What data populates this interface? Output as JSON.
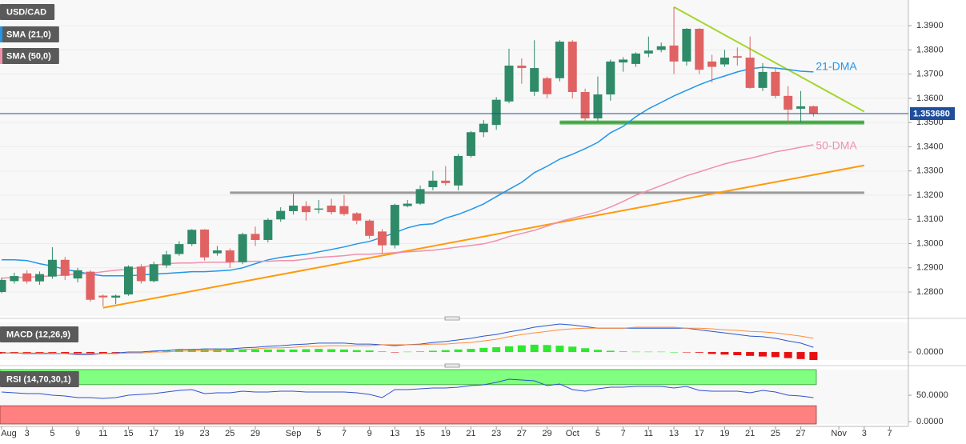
{
  "chart_data": [
    {
      "type": "candlestick",
      "title": "USD/CAD",
      "categories": [
        "Aug",
        null,
        "3",
        null,
        "5",
        null,
        "9",
        null,
        "11",
        null,
        "15",
        null,
        "17",
        null,
        "19",
        null,
        "23",
        null,
        "25",
        null,
        "29",
        null,
        null,
        "Sep",
        null,
        "5",
        null,
        "7",
        null,
        "9",
        null,
        "13",
        null,
        "15",
        null,
        "19",
        null,
        "21",
        null,
        "23",
        null,
        "27",
        null,
        "29",
        null,
        "Oct",
        null,
        "5",
        null,
        "7",
        null,
        "11",
        null,
        "13",
        null,
        "17",
        null,
        "19",
        null,
        "21",
        null,
        "25",
        null,
        "27",
        null,
        null,
        "Nov",
        null,
        "3",
        null,
        "7"
      ],
      "open": [
        1.28,
        1.2845,
        1.2877,
        1.2844,
        1.2864,
        1.2933,
        1.2856,
        1.2884,
        1.2785,
        1.2777,
        1.279,
        1.2905,
        1.2845,
        1.291,
        1.2957,
        1.2998,
        1.3058,
        1.296,
        1.2972,
        1.2923,
        1.304,
        1.3015,
        1.31,
        1.3134,
        1.3155,
        1.314,
        1.3157,
        1.3155,
        1.3125,
        1.3095,
        1.305,
        1.2993,
        1.3155,
        1.3165,
        1.3233,
        1.326,
        1.324,
        1.3362,
        1.346,
        1.349,
        1.3587,
        1.3735,
        1.3627,
        1.3683,
        1.3683,
        1.3834,
        1.3626,
        1.3517,
        1.3616,
        1.3748,
        1.3742,
        1.3785,
        1.38,
        1.3818,
        1.3752,
        1.3887,
        1.3752,
        1.374,
        1.3774,
        1.3768,
        1.3643,
        1.3709,
        1.361,
        1.3557,
        1.3567,
        null,
        null,
        null,
        null,
        null,
        null
      ],
      "high": [
        1.286,
        1.288,
        1.289,
        1.2885,
        1.2985,
        1.2945,
        1.29,
        1.289,
        1.279,
        1.279,
        1.291,
        1.2915,
        1.2925,
        1.297,
        1.301,
        1.306,
        1.306,
        1.299,
        1.298,
        1.3045,
        1.307,
        1.3105,
        1.315,
        1.3205,
        1.3175,
        1.318,
        1.3185,
        1.32,
        1.313,
        1.31,
        1.306,
        1.3165,
        1.318,
        1.324,
        1.33,
        1.332,
        1.337,
        1.3465,
        1.351,
        1.3605,
        1.3805,
        1.3765,
        1.384,
        1.369,
        1.384,
        1.384,
        1.364,
        1.369,
        1.376,
        1.377,
        1.379,
        1.3855,
        1.383,
        1.3977,
        1.389,
        1.389,
        1.378,
        1.38,
        1.381,
        1.3855,
        1.3745,
        1.3725,
        1.365,
        1.363,
        1.357,
        null,
        null,
        null,
        null,
        null,
        null
      ],
      "low": [
        1.2795,
        1.2835,
        1.2835,
        1.283,
        1.2855,
        1.285,
        1.284,
        1.276,
        1.274,
        1.275,
        1.2785,
        1.2835,
        1.284,
        1.29,
        1.295,
        1.299,
        1.293,
        1.295,
        1.29,
        1.2915,
        1.299,
        1.3005,
        1.309,
        1.312,
        1.3095,
        1.3125,
        1.312,
        1.3115,
        1.308,
        1.302,
        1.296,
        1.298,
        1.315,
        1.316,
        1.322,
        1.324,
        1.322,
        1.3355,
        1.344,
        1.347,
        1.358,
        1.366,
        1.361,
        1.36,
        1.367,
        1.36,
        1.3505,
        1.3505,
        1.359,
        1.371,
        1.373,
        1.377,
        1.379,
        1.37,
        1.3735,
        1.37,
        1.3665,
        1.373,
        1.3735,
        1.364,
        1.363,
        1.36,
        1.35,
        1.35,
        1.3525,
        null,
        null,
        null,
        null,
        null,
        null
      ],
      "close": [
        1.285,
        1.2866,
        1.2844,
        1.2874,
        1.2933,
        1.2867,
        1.289,
        1.2768,
        1.2778,
        1.2785,
        1.2905,
        1.2845,
        1.2915,
        1.2955,
        1.2998,
        1.3057,
        1.2943,
        1.2972,
        1.2923,
        1.3039,
        1.3015,
        1.3098,
        1.3135,
        1.3157,
        1.313,
        1.3145,
        1.313,
        1.3122,
        1.3095,
        1.3032,
        1.2993,
        1.316,
        1.3165,
        1.3225,
        1.326,
        1.325,
        1.3362,
        1.346,
        1.3495,
        1.3594,
        1.3735,
        1.3725,
        1.3725,
        1.3617,
        1.3834,
        1.3626,
        1.3517,
        1.3616,
        1.3752,
        1.376,
        1.3785,
        1.3797,
        1.3815,
        1.3752,
        1.3887,
        1.3718,
        1.373,
        1.3768,
        1.3768,
        1.3643,
        1.3709,
        1.361,
        1.3553,
        1.3567,
        1.3537,
        null,
        null,
        null,
        null,
        null,
        null
      ],
      "color_up": "#2f8a68",
      "color_down": "#e06262",
      "ylim": [
        1.2701,
        1.4006
      ],
      "yticks": [
        {
          "value": 1.28,
          "label": "1.2800"
        },
        {
          "value": 1.29,
          "label": "1.2900"
        },
        {
          "value": 1.3,
          "label": "1.3000"
        },
        {
          "value": 1.31,
          "label": "1.3100"
        },
        {
          "value": 1.32,
          "label": "1.3200"
        },
        {
          "value": 1.33,
          "label": "1.3300"
        },
        {
          "value": 1.34,
          "label": "1.3400"
        },
        {
          "value": 1.35,
          "label": "1.3500"
        },
        {
          "value": 1.36,
          "label": "1.3600"
        },
        {
          "value": 1.37,
          "label": "1.3700"
        },
        {
          "value": 1.38,
          "label": "1.3800"
        },
        {
          "value": 1.39,
          "label": "1.3900"
        }
      ],
      "grid": true,
      "last_price": {
        "value": 1.35368,
        "label": "1.353680",
        "color": "#1f4e9c"
      },
      "series": [
        {
          "name": "SMA (21,0)",
          "label": "21-DMA",
          "color": "#2196e8",
          "values": [
            1.2933,
            1.2933,
            1.293,
            1.2917,
            1.2907,
            1.2894,
            1.2884,
            1.2874,
            1.2867,
            1.2867,
            1.2867,
            1.287,
            1.2874,
            1.2877,
            1.288,
            1.2884,
            1.2884,
            1.2887,
            1.289,
            1.29,
            1.2917,
            1.2933,
            1.2943,
            1.295,
            1.2956,
            1.2966,
            1.2976,
            1.2986,
            1.2999,
            1.3009,
            1.3026,
            1.3045,
            1.3065,
            1.3078,
            1.3082,
            1.3105,
            1.3121,
            1.3141,
            1.3164,
            1.3194,
            1.3224,
            1.3253,
            1.3293,
            1.3319,
            1.3349,
            1.3369,
            1.3392,
            1.3418,
            1.3458,
            1.3484,
            1.3524,
            1.3557,
            1.3583,
            1.361,
            1.3633,
            1.3656,
            1.3676,
            1.3692,
            1.3709,
            1.3722,
            1.3728,
            1.3725,
            1.3719,
            1.3712,
            1.3709,
            null,
            null,
            null,
            null,
            null,
            null
          ]
        },
        {
          "name": "SMA (50,0)",
          "label": "50-DMA",
          "color": "#f090ac",
          "values": [
            1.2857,
            1.2861,
            1.2861,
            1.2864,
            1.2867,
            1.287,
            1.2874,
            1.2877,
            1.2884,
            1.289,
            1.2894,
            1.2903,
            1.291,
            1.2917,
            1.292,
            1.292,
            1.2923,
            1.2923,
            1.2923,
            1.2927,
            1.2927,
            1.2927,
            1.293,
            1.293,
            1.2936,
            1.2943,
            1.2946,
            1.295,
            1.2956,
            1.2956,
            1.2959,
            1.2963,
            1.2966,
            1.2969,
            1.2973,
            1.2979,
            1.2986,
            1.2992,
            1.2999,
            1.3012,
            1.3029,
            1.3042,
            1.3055,
            1.3072,
            1.3091,
            1.3105,
            1.3118,
            1.3131,
            1.3151,
            1.3174,
            1.32,
            1.322,
            1.324,
            1.326,
            1.328,
            1.3296,
            1.3313,
            1.3329,
            1.3342,
            1.3352,
            1.3365,
            1.3379,
            1.3388,
            1.3398,
            1.3408,
            null,
            null,
            null,
            null,
            null,
            null
          ]
        }
      ],
      "lines": [
        {
          "color": "#a4d62a",
          "x": [
            53,
            68
          ],
          "y": [
            1.3977,
            1.3545
          ]
        },
        {
          "color": "#5cb85c",
          "x": [
            44,
            68
          ],
          "y": [
            1.35,
            1.35
          ]
        },
        {
          "color": "#9a9a9a",
          "x": [
            18,
            68
          ],
          "y": [
            1.321,
            1.321
          ]
        },
        {
          "color": "#ff9a0a",
          "x": [
            8,
            68
          ],
          "y": [
            1.2735,
            1.3323
          ]
        }
      ]
    },
    {
      "type": "macd",
      "title": "MACD (12,26,9)",
      "ylim": [
        -0.0025,
        0.0093
      ],
      "yticks": [
        {
          "value": 0,
          "label": "0.0000"
        }
      ],
      "histogram": {
        "color_up": "#2ee82e",
        "color_down": "#e81010",
        "values": [
          -0.0005,
          -0.0005,
          -0.0006,
          -0.0006,
          -0.0005,
          -0.0005,
          -0.0005,
          -0.0006,
          -0.0004,
          -0.0002,
          -0.0001,
          0.0001,
          0.0003,
          0.0005,
          0.0007,
          0.0008,
          0.0008,
          0.0008,
          0.0007,
          0.0007,
          0.0008,
          0.0008,
          0.0008,
          0.0008,
          0.0009,
          0.001,
          0.0009,
          0.0008,
          0.0006,
          0.0005,
          0.0002,
          -0.0001,
          0.0001,
          0.0002,
          0.0004,
          0.0006,
          0.0008,
          0.001,
          0.0013,
          0.0015,
          0.0018,
          0.0021,
          0.0023,
          0.0022,
          0.002,
          0.0017,
          0.0012,
          0.0007,
          0.0004,
          0.0002,
          0.0001,
          0.0001,
          0.0001,
          0.0,
          -0.0001,
          -0.0002,
          -0.0006,
          -0.0008,
          -0.001,
          -0.0012,
          -0.0014,
          -0.0016,
          -0.0019,
          -0.0022,
          -0.0025,
          null,
          null,
          null,
          null,
          null,
          null
        ]
      },
      "series": [
        {
          "color": "#2a56d0",
          "values": [
            -0.0003,
            -0.0003,
            -0.0005,
            -0.0005,
            -0.0005,
            -0.0005,
            -0.0008,
            -0.0008,
            -0.0005,
            -0.0003,
            0.0,
            0.0,
            0.0003,
            0.0005,
            0.0008,
            0.0008,
            0.001,
            0.001,
            0.001,
            0.0013,
            0.0015,
            0.0018,
            0.002,
            0.0023,
            0.0025,
            0.0028,
            0.0028,
            0.0028,
            0.0025,
            0.0025,
            0.0023,
            0.002,
            0.0023,
            0.0025,
            0.003,
            0.0033,
            0.0038,
            0.0043,
            0.005,
            0.0055,
            0.0063,
            0.007,
            0.0078,
            0.0083,
            0.0088,
            0.0085,
            0.008,
            0.0075,
            0.0075,
            0.0075,
            0.0075,
            0.0075,
            0.0075,
            0.0075,
            0.0075,
            0.007,
            0.0065,
            0.006,
            0.0055,
            0.005,
            0.0048,
            0.0043,
            0.0035,
            0.0028,
            0.0015,
            null,
            null,
            null,
            null,
            null,
            null
          ]
        },
        {
          "color": "#ff8c3a",
          "values": [
            -0.0003,
            -0.0003,
            -0.0003,
            -0.0003,
            -0.0003,
            -0.0005,
            -0.0005,
            -0.0005,
            -0.0005,
            -0.0005,
            -0.0003,
            -0.0003,
            0.0,
            0.0,
            0.0003,
            0.0003,
            0.0005,
            0.0005,
            0.0008,
            0.0008,
            0.001,
            0.0013,
            0.0013,
            0.0015,
            0.0018,
            0.0018,
            0.002,
            0.002,
            0.002,
            0.002,
            0.0023,
            0.0023,
            0.0023,
            0.0023,
            0.0025,
            0.0025,
            0.0028,
            0.003,
            0.0035,
            0.004,
            0.0048,
            0.0055,
            0.006,
            0.0065,
            0.007,
            0.0073,
            0.0075,
            0.0075,
            0.0075,
            0.0075,
            0.0078,
            0.0078,
            0.0078,
            0.0078,
            0.0075,
            0.0075,
            0.0073,
            0.007,
            0.0068,
            0.0065,
            0.0063,
            0.006,
            0.0055,
            0.005,
            0.0043,
            null,
            null,
            null,
            null,
            null,
            null
          ]
        }
      ]
    },
    {
      "type": "rsi",
      "title": "RSI (14,70,30,1)",
      "ylim": [
        -4.5,
        98.5
      ],
      "yticks": [
        {
          "value": 50,
          "label": "50.0000"
        },
        {
          "value": 0,
          "label": "0.0000"
        }
      ],
      "overbought": 70,
      "oversold": 30,
      "band_colors": [
        "#80ff80",
        "#ff8080"
      ],
      "series": [
        {
          "color": "#3050d0",
          "values": [
            56.1,
            54.5,
            53.0,
            53.0,
            50.0,
            48.5,
            45.5,
            45.5,
            43.9,
            45.5,
            50.0,
            51.5,
            53.0,
            56.1,
            59.1,
            60.6,
            53.0,
            54.5,
            54.5,
            57.6,
            56.1,
            56.1,
            57.6,
            57.6,
            56.1,
            56.1,
            56.1,
            56.1,
            54.5,
            51.5,
            45.5,
            60.6,
            60.6,
            62.1,
            63.6,
            63.6,
            65.2,
            68.2,
            69.7,
            74.2,
            80.3,
            78.8,
            77.3,
            68.2,
            71.2,
            60.6,
            57.6,
            62.1,
            65.2,
            65.2,
            66.7,
            66.7,
            66.7,
            63.6,
            66.7,
            59.1,
            57.6,
            57.6,
            57.6,
            54.5,
            59.1,
            56.1,
            50.0,
            48.5,
            45.5,
            null,
            null,
            null,
            null,
            null,
            null
          ]
        }
      ]
    }
  ]
}
